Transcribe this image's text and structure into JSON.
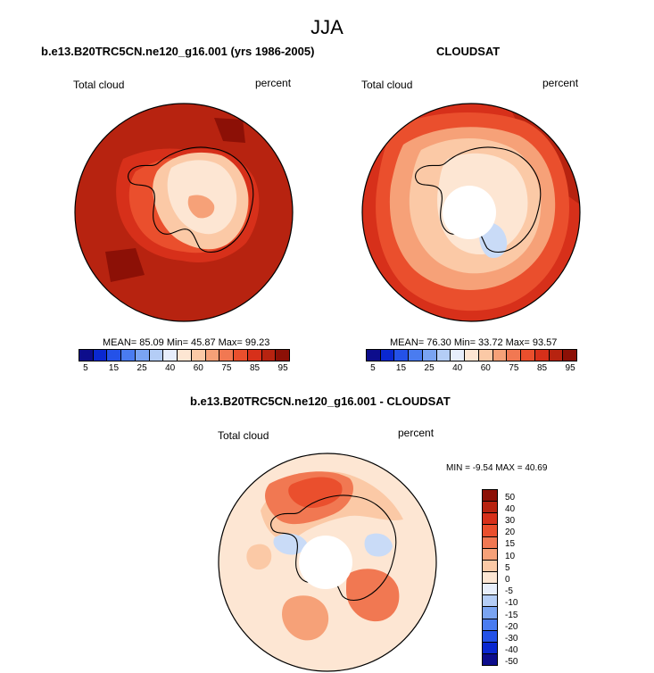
{
  "title": "JJA",
  "panels": {
    "model": {
      "title": "b.e13.B20TRC5CN.ne120_g16.001 (yrs 1986-2005)",
      "left_label": "Total cloud",
      "right_label": "percent",
      "stats": "MEAN= 85.09  Min= 45.87  Max= 99.23"
    },
    "obs": {
      "title": "CLOUDSAT",
      "left_label": "Total cloud",
      "right_label": "percent",
      "stats": "MEAN= 76.30  Min= 33.72  Max= 93.57"
    },
    "diff": {
      "title": "b.e13.B20TRC5CN.ne120_g16.001 - CLOUDSAT",
      "left_label": "Total cloud",
      "right_label": "percent",
      "stats": "MIN =  -9.54 MAX =  40.69"
    }
  },
  "colorbars": {
    "abs": {
      "colors": [
        "#0d0d8c",
        "#0a28d0",
        "#2452e8",
        "#4a7cf0",
        "#7aa4f2",
        "#b4cdf6",
        "#e7eefb",
        "#fde6d3",
        "#fbc9a6",
        "#f6a178",
        "#f17852",
        "#ea4f2d",
        "#d7301a",
        "#b72310",
        "#8c1006"
      ],
      "tick_labels": [
        "5",
        "15",
        "25",
        "40",
        "60",
        "75",
        "85",
        "95"
      ]
    },
    "diff": {
      "colors": [
        "#8c1006",
        "#b72310",
        "#d7301a",
        "#ea4f2d",
        "#f17852",
        "#f6a178",
        "#fbc9a6",
        "#fde6d3",
        "#e7eefb",
        "#b4cdf6",
        "#7aa4f2",
        "#4a7cf0",
        "#2452e8",
        "#0a28d0",
        "#0d0d8c"
      ],
      "tick_labels": [
        "50",
        "40",
        "30",
        "20",
        "15",
        "10",
        "5",
        "0",
        "-5",
        "-10",
        "-15",
        "-20",
        "-30",
        "-40",
        "-50"
      ]
    }
  },
  "colors": {
    "ocean_high": "#b72310",
    "ocean_mid": "#d7301a",
    "ocean_low": "#ea4f2d",
    "land_light": "#fde6d3",
    "land_mid": "#fbc9a6",
    "land_warm": "#f6a178",
    "hole": "#ffffff",
    "blue_light": "#c9dbf7",
    "diff_bg": "#fde6d3"
  }
}
